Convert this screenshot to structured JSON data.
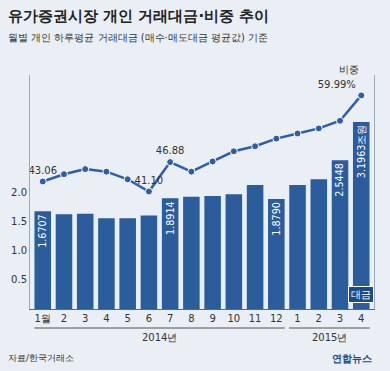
{
  "chart_data": {
    "type": "bar",
    "title": "유가증권시장 개인 거래대금·비중 추이",
    "subtitle": "월별 개인 하루평균 거래대금 (매수·매도대금 평균값) 기준",
    "source": "자료/한국거래소",
    "credit": "연합뉴스",
    "categories": [
      "1월",
      "2",
      "3",
      "4",
      "5",
      "6",
      "7",
      "8",
      "9",
      "10",
      "11",
      "12",
      "1",
      "2",
      "3",
      "4"
    ],
    "groups": [
      {
        "label": "2014년",
        "from": "1월",
        "to": "12"
      },
      {
        "label": "2015년",
        "from": "1",
        "to": "4"
      }
    ],
    "series": [
      {
        "name": "대금",
        "type": "bar",
        "color": "#2b5c9c",
        "values": [
          1.6707,
          1.62,
          1.63,
          1.55,
          1.55,
          1.6,
          1.8914,
          1.92,
          1.93,
          1.96,
          2.12,
          1.879,
          2.12,
          2.22,
          2.5448,
          3.1963
        ],
        "value_labels": [
          "1.6707",
          null,
          null,
          null,
          null,
          null,
          "1.8914",
          null,
          null,
          null,
          null,
          "1.8790",
          null,
          null,
          "2.5448",
          "3.1963조원"
        ]
      },
      {
        "name": "비중",
        "type": "line",
        "axis": "y2",
        "color": "#2d5ea6",
        "marker": "circle",
        "values": [
          43.06,
          44.5,
          45.5,
          45.0,
          43.5,
          41.1,
          46.88,
          45.0,
          47.0,
          49.0,
          50.0,
          51.5,
          52.5,
          53.5,
          55.0,
          59.99
        ],
        "value_labels": [
          "43.06",
          null,
          null,
          null,
          null,
          "41.10",
          "46.88",
          null,
          null,
          null,
          null,
          null,
          null,
          null,
          null,
          "59.99%"
        ]
      }
    ],
    "ylim": [
      0,
      4
    ],
    "yticks": [
      {
        "value": 0.5,
        "label": "0.5"
      },
      {
        "value": 1,
        "label": "1.0"
      },
      {
        "value": 1.5,
        "label": "1.5"
      },
      {
        "value": 2,
        "label": "2.0"
      }
    ],
    "y2lim": [
      18,
      64
    ],
    "grid": false,
    "data_labels": true
  }
}
